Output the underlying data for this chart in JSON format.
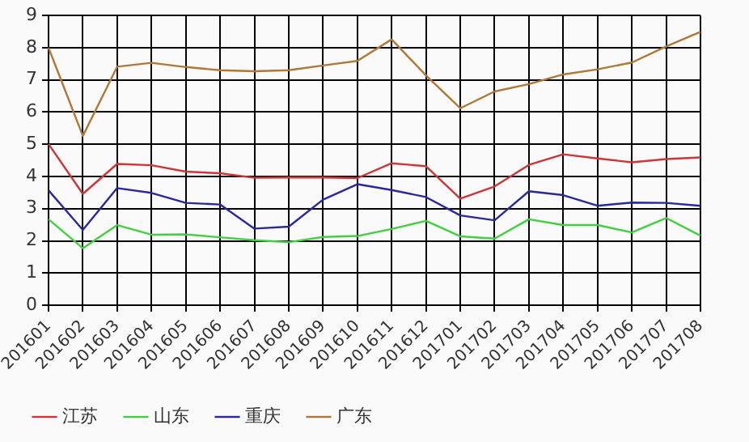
{
  "chart_data": {
    "type": "line",
    "categories": [
      "201601",
      "201602",
      "201603",
      "201604",
      "201605",
      "201606",
      "201607",
      "201608",
      "201609",
      "201610",
      "201611",
      "201612",
      "201701",
      "201702",
      "201703",
      "201704",
      "201705",
      "201706",
      "201707",
      "201708"
    ],
    "series": [
      {
        "name": "江苏",
        "color": "#d03535",
        "values": [
          5.01,
          3.46,
          4.39,
          4.35,
          4.15,
          4.1,
          3.96,
          3.97,
          3.97,
          3.95,
          4.41,
          4.32,
          3.31,
          3.69,
          4.36,
          4.69,
          4.56,
          4.44,
          4.54,
          4.59
        ]
      },
      {
        "name": "山东",
        "color": "#40d040",
        "values": [
          2.67,
          1.77,
          2.49,
          2.19,
          2.2,
          2.11,
          2.02,
          1.96,
          2.12,
          2.15,
          2.37,
          2.62,
          2.14,
          2.07,
          2.67,
          2.49,
          2.49,
          2.26,
          2.71,
          2.16
        ]
      },
      {
        "name": "重庆",
        "color": "#2828a0",
        "values": [
          3.57,
          2.34,
          3.64,
          3.49,
          3.18,
          3.13,
          2.38,
          2.44,
          3.28,
          3.76,
          3.58,
          3.36,
          2.79,
          2.64,
          3.54,
          3.42,
          3.09,
          3.19,
          3.18,
          3.09
        ]
      },
      {
        "name": "广东",
        "color": "#b07835",
        "values": [
          8.0,
          5.26,
          7.41,
          7.53,
          7.4,
          7.3,
          7.27,
          7.3,
          7.45,
          7.59,
          8.26,
          7.14,
          6.12,
          6.64,
          6.87,
          7.17,
          7.33,
          7.54,
          8.04,
          8.49
        ]
      }
    ],
    "ylim": [
      0,
      9
    ],
    "yticks": [
      0,
      1,
      2,
      3,
      4,
      5,
      6,
      7,
      8,
      9
    ],
    "grid": true,
    "legend": "bottom",
    "marker": "none",
    "line_style": "solid"
  }
}
